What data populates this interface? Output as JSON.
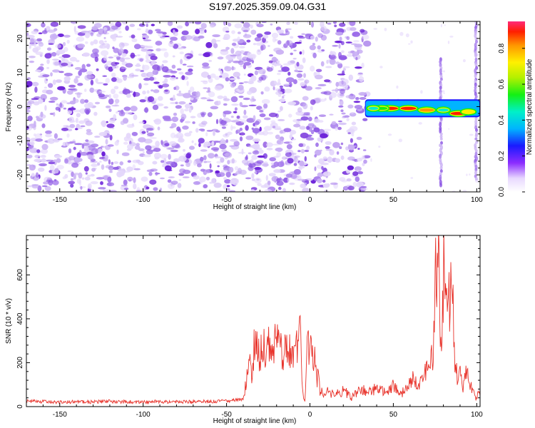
{
  "title": "S197.2025.359.09.04.G31",
  "colors": {
    "snr_line": "#e8332b",
    "noise": [
      "#e4d7fb",
      "#c9b0f4",
      "#a57aec",
      "#8a53e4",
      "#6a1fd8"
    ]
  },
  "chart_data": [
    {
      "type": "heatmap",
      "name": "spectrogram",
      "xlabel": "Height of straight line (km)",
      "ylabel": "Frequency (Hz)",
      "xlim": [
        -170,
        102
      ],
      "ylim": [
        -25,
        25
      ],
      "xticks": [
        -150,
        -100,
        -50,
        0,
        50,
        100
      ],
      "yticks": [
        20,
        10,
        0,
        -10,
        -20
      ],
      "noise_region_x": [
        -170,
        33
      ],
      "signal_band": {
        "x": [
          33,
          102
        ],
        "frequency_hz": 0,
        "halfwidth_hz": 1.5
      },
      "peaks": [
        {
          "x": 48,
          "frequency_hz": -0.5,
          "amp": 0.92
        },
        {
          "x": 59,
          "frequency_hz": -0.5,
          "amp": 0.9
        },
        {
          "x": 70,
          "frequency_hz": -1,
          "amp": 0.82
        },
        {
          "x": 89,
          "frequency_hz": -2,
          "amp": 0.88
        },
        {
          "x": 43,
          "frequency_hz": -0.5,
          "amp": 0.55
        },
        {
          "x": 95,
          "frequency_hz": -1.5,
          "amp": 0.6
        },
        {
          "x": 38,
          "frequency_hz": -0.5,
          "amp": 0.4
        },
        {
          "x": 80,
          "frequency_hz": -1,
          "amp": 0.45
        }
      ],
      "vertical_streaks": [
        {
          "x": 78.5,
          "from_hz": -24,
          "to_hz": 14
        },
        {
          "x": 99.5,
          "from_hz": -22,
          "to_hz": 25
        }
      ],
      "colorbar": {
        "label": "Normalized spectral amplitude",
        "range": [
          0,
          0.95
        ],
        "ticks": [
          "0.0",
          "0.2",
          "0.4",
          "0.6",
          "0.8"
        ]
      }
    },
    {
      "type": "line",
      "name": "snr",
      "xlabel": "Height of straight line (km)",
      "ylabel": "SNR (10 * v/v)",
      "xlim": [
        -170,
        102
      ],
      "ylim": [
        0,
        780
      ],
      "xticks": [
        -150,
        -100,
        -50,
        0,
        50,
        100
      ],
      "yticks": [
        0,
        200,
        400,
        600
      ],
      "series": [
        {
          "name": "SNR",
          "x": [
            -170,
            -160,
            -150,
            -140,
            -130,
            -120,
            -110,
            -100,
            -90,
            -80,
            -70,
            -60,
            -50,
            -45,
            -40,
            -37,
            -36,
            -35,
            -33,
            -31,
            -30,
            -28,
            -26,
            -24,
            -22,
            -20,
            -18,
            -16,
            -14,
            -12,
            -10,
            -8,
            -6,
            -5,
            -4,
            -3,
            -2,
            -1,
            0,
            1,
            2,
            3,
            4,
            5,
            6,
            7,
            8,
            10,
            12,
            15,
            18,
            20,
            25,
            30,
            35,
            40,
            45,
            50,
            55,
            60,
            62,
            65,
            68,
            70,
            72,
            73,
            74,
            75,
            76,
            77,
            78,
            79,
            80,
            81,
            82,
            83,
            84,
            86,
            87,
            88,
            89,
            90,
            92,
            94,
            96,
            98,
            100,
            101,
            102
          ],
          "values": [
            25,
            22,
            20,
            23,
            21,
            24,
            22,
            20,
            23,
            21,
            22,
            24,
            25,
            28,
            35,
            180,
            260,
            130,
            330,
            250,
            210,
            320,
            240,
            290,
            260,
            350,
            270,
            230,
            300,
            260,
            230,
            280,
            370,
            180,
            40,
            30,
            280,
            260,
            310,
            290,
            250,
            200,
            120,
            150,
            60,
            80,
            50,
            90,
            55,
            70,
            50,
            75,
            40,
            80,
            65,
            85,
            70,
            95,
            60,
            100,
            130,
            90,
            120,
            170,
            140,
            240,
            150,
            680,
            620,
            760,
            320,
            200,
            620,
            600,
            580,
            500,
            520,
            420,
            180,
            150,
            110,
            180,
            90,
            160,
            100,
            80,
            30,
            70,
            50
          ]
        }
      ]
    }
  ]
}
